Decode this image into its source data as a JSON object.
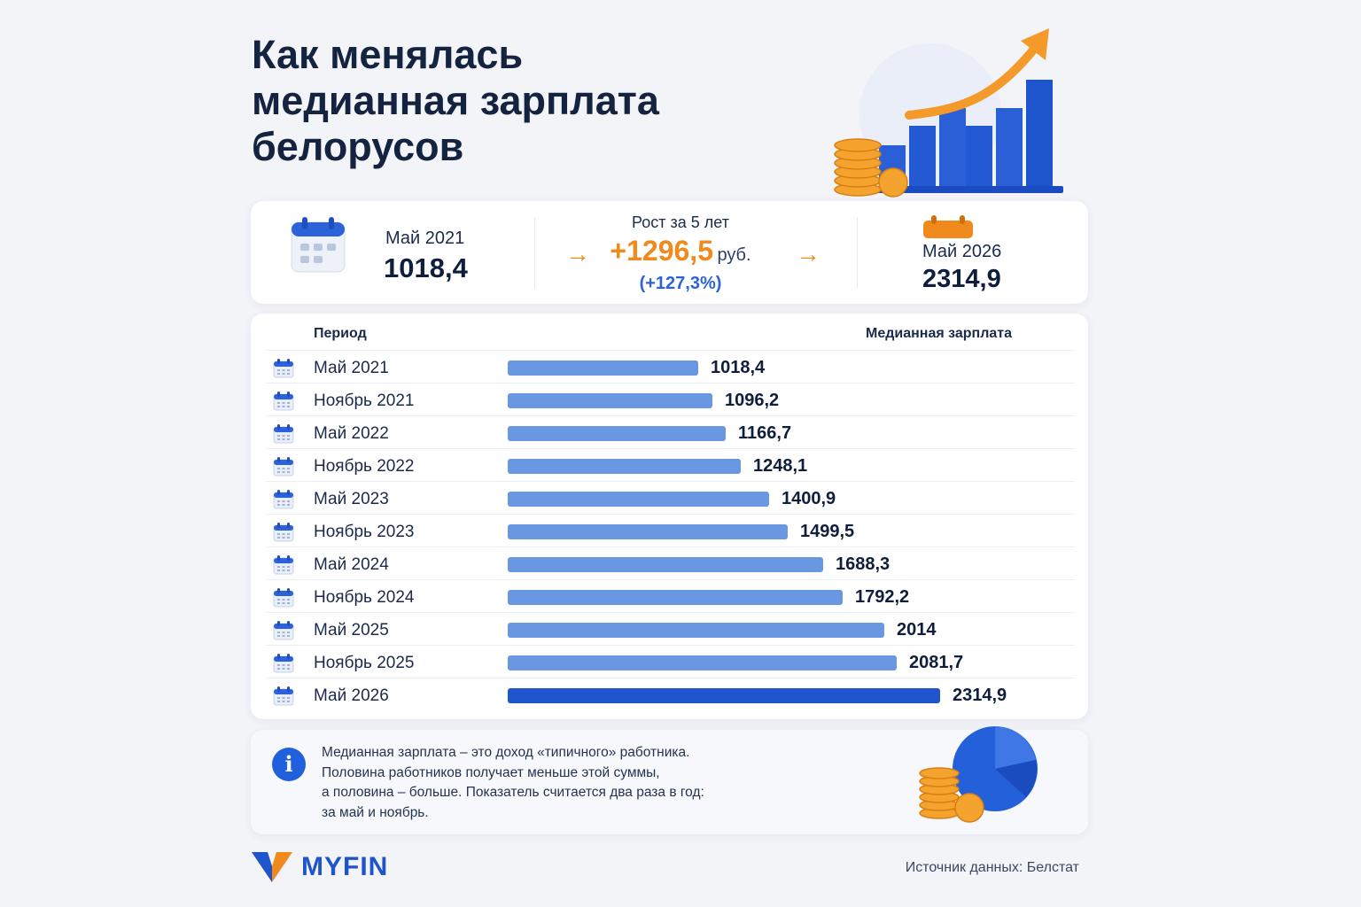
{
  "title": {
    "line1": "Как менялась",
    "line2": "медианная зарплата",
    "line3": "белорусов"
  },
  "summary": {
    "start_label": "Май 2021",
    "start_value": "1018,4",
    "growth_label": "Рост за 5 лет",
    "growth_value": "+1296,5",
    "growth_unit": "руб.",
    "growth_percent": "(+127,3%)",
    "end_label": "Май 2026",
    "end_value": "2314,9",
    "arrow_glyph": "→"
  },
  "table": {
    "col_period": "Период",
    "col_salary": "Медианная зарплата"
  },
  "chart_data": {
    "type": "bar",
    "orientation": "horizontal",
    "categories": [
      "Май 2021",
      "Ноябрь 2021",
      "Май 2022",
      "Ноябрь 2022",
      "Май 2023",
      "Ноябрь 2023",
      "Май 2024",
      "Ноябрь 2024",
      "Май 2025",
      "Ноябрь 2025",
      "Май 2026"
    ],
    "values": [
      1018.4,
      1096.2,
      1166.7,
      1248.1,
      1400.9,
      1499.5,
      1688.3,
      1792.2,
      2014,
      2081.7,
      2314.9
    ],
    "value_labels": [
      "1018,4",
      "1096,2",
      "1166,7",
      "1248,1",
      "1400,9",
      "1499,5",
      "1688,3",
      "1792,2",
      "2014",
      "2081,7",
      "2314,9"
    ],
    "title": "",
    "xlabel": "",
    "ylabel": "",
    "colors": {
      "bar": "#6a97e2",
      "highlight": "#1f55cc"
    }
  },
  "note": {
    "line1": "Медианная зарплата – это доход «типичного» работника.",
    "line2": "Половина работников получает меньше этой суммы,",
    "line3": "а половина – больше. Показатель считается два раза в год:",
    "line4": "за май и ноябрь.",
    "icon_glyph": "i"
  },
  "footer": {
    "brand": "MYFIN",
    "source": "Источник данных: Белстат"
  },
  "colors": {
    "accent_orange": "#f08a1c",
    "accent_blue": "#1f55cc",
    "text_dark": "#14233f"
  }
}
